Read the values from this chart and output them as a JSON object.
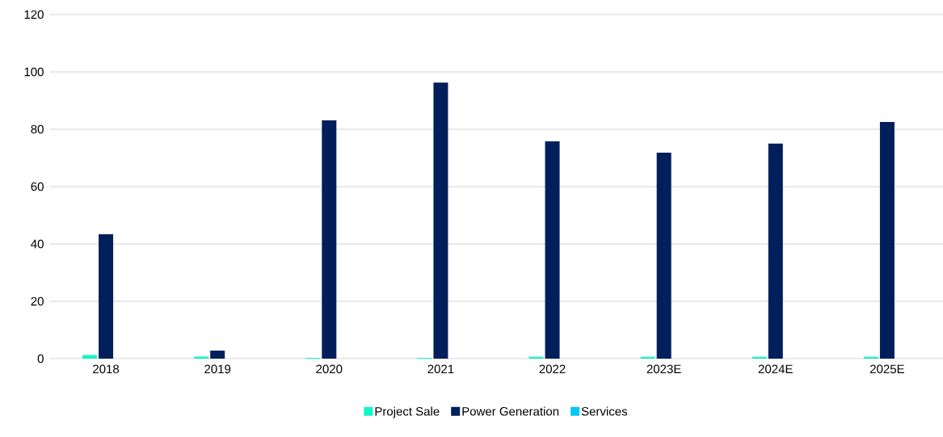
{
  "chart_data": {
    "type": "bar",
    "categories": [
      "2018",
      "2019",
      "2020",
      "2021",
      "2022",
      "2023E",
      "2024E",
      "2025E"
    ],
    "series": [
      {
        "name": "Project Sale",
        "color": "#14f5c8",
        "values": [
          1.3,
          0.7,
          0.3,
          0.3,
          0.6,
          0.6,
          0.6,
          0.6
        ]
      },
      {
        "name": "Power Generation",
        "color": "#001f5b",
        "values": [
          43.4,
          2.8,
          83.1,
          96.3,
          75.8,
          71.8,
          75.0,
          82.5
        ]
      },
      {
        "name": "Services",
        "color": "#00c8f0",
        "values": [
          0,
          0,
          0,
          0,
          0,
          0,
          0,
          0
        ]
      }
    ],
    "ylim": [
      0,
      120
    ],
    "yticks": [
      0,
      20,
      40,
      60,
      80,
      100,
      120
    ],
    "grid": "y",
    "legend": "bottom"
  }
}
